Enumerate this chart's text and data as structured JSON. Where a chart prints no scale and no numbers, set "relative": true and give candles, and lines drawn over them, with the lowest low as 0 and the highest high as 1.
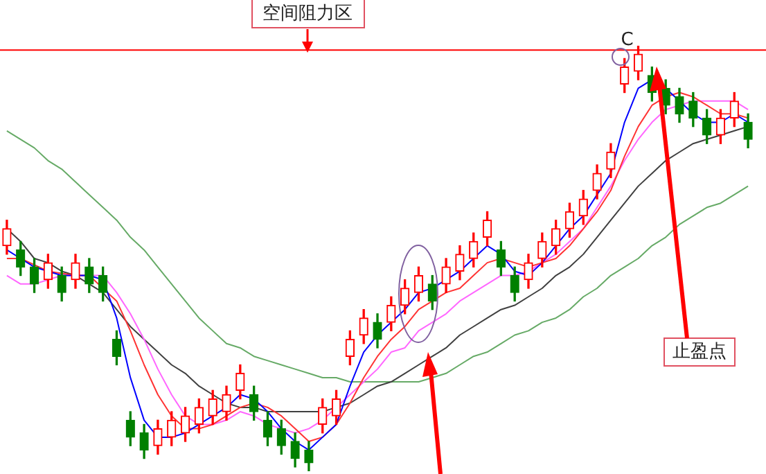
{
  "chart_data": {
    "type": "candlestick",
    "relative": true,
    "legend": false,
    "marker": "none",
    "line_style": "solid",
    "categories": [
      null,
      null,
      null,
      null,
      null,
      null,
      null,
      null,
      null,
      null,
      null,
      null,
      null,
      null,
      null,
      null,
      null,
      null,
      null,
      null,
      null,
      null,
      null,
      null,
      null,
      null,
      null,
      null,
      null,
      null,
      null,
      null,
      null,
      null,
      null,
      null,
      null,
      null,
      null,
      null,
      null,
      null,
      null,
      null,
      null,
      null,
      null,
      null,
      null,
      null,
      null,
      null,
      null,
      null,
      null
    ],
    "ohlc": [
      [
        0.53,
        0.59,
        0.51,
        0.57
      ],
      [
        0.52,
        0.54,
        0.46,
        0.48
      ],
      [
        0.48,
        0.5,
        0.42,
        0.44
      ],
      [
        0.45,
        0.51,
        0.43,
        0.49
      ],
      [
        0.46,
        0.48,
        0.4,
        0.42
      ],
      [
        0.45,
        0.51,
        0.43,
        0.49
      ],
      [
        0.48,
        0.5,
        0.42,
        0.44
      ],
      [
        0.46,
        0.48,
        0.4,
        0.42
      ],
      [
        0.31,
        0.33,
        0.25,
        0.27
      ],
      [
        0.12,
        0.14,
        0.06,
        0.08
      ],
      [
        0.09,
        0.11,
        0.03,
        0.05
      ],
      [
        0.06,
        0.12,
        0.04,
        0.1
      ],
      [
        0.08,
        0.14,
        0.06,
        0.12
      ],
      [
        0.09,
        0.15,
        0.07,
        0.13
      ],
      [
        0.11,
        0.17,
        0.09,
        0.15
      ],
      [
        0.13,
        0.19,
        0.11,
        0.17
      ],
      [
        0.14,
        0.2,
        0.12,
        0.18
      ],
      [
        0.19,
        0.25,
        0.17,
        0.23
      ],
      [
        0.18,
        0.2,
        0.12,
        0.14
      ],
      [
        0.12,
        0.14,
        0.06,
        0.08
      ],
      [
        0.1,
        0.12,
        0.04,
        0.06
      ],
      [
        0.07,
        0.09,
        0.01,
        0.03
      ],
      [
        0.05,
        0.07,
        0.0,
        0.02
      ],
      [
        0.11,
        0.17,
        0.09,
        0.15
      ],
      [
        0.13,
        0.19,
        0.11,
        0.17
      ],
      [
        0.27,
        0.33,
        0.25,
        0.31
      ],
      [
        0.32,
        0.38,
        0.3,
        0.36
      ],
      [
        0.35,
        0.37,
        0.29,
        0.31
      ],
      [
        0.35,
        0.41,
        0.33,
        0.39
      ],
      [
        0.39,
        0.45,
        0.37,
        0.43
      ],
      [
        0.42,
        0.48,
        0.4,
        0.46
      ],
      [
        0.44,
        0.46,
        0.38,
        0.4
      ],
      [
        0.44,
        0.5,
        0.42,
        0.48
      ],
      [
        0.47,
        0.53,
        0.45,
        0.51
      ],
      [
        0.5,
        0.56,
        0.48,
        0.54
      ],
      [
        0.55,
        0.61,
        0.53,
        0.59
      ],
      [
        0.52,
        0.54,
        0.46,
        0.48
      ],
      [
        0.46,
        0.48,
        0.4,
        0.42
      ],
      [
        0.45,
        0.51,
        0.43,
        0.49
      ],
      [
        0.5,
        0.56,
        0.48,
        0.54
      ],
      [
        0.53,
        0.59,
        0.51,
        0.57
      ],
      [
        0.57,
        0.63,
        0.55,
        0.61
      ],
      [
        0.6,
        0.66,
        0.58,
        0.64
      ],
      [
        0.66,
        0.72,
        0.64,
        0.7
      ],
      [
        0.71,
        0.77,
        0.69,
        0.75
      ],
      [
        0.91,
        0.97,
        0.89,
        0.95
      ],
      [
        0.94,
        1.0,
        0.92,
        0.98
      ],
      [
        0.93,
        0.95,
        0.87,
        0.89
      ],
      [
        0.9,
        0.92,
        0.84,
        0.86
      ],
      [
        0.88,
        0.9,
        0.82,
        0.84
      ],
      [
        0.87,
        0.89,
        0.81,
        0.83
      ],
      [
        0.83,
        0.85,
        0.77,
        0.79
      ],
      [
        0.79,
        0.85,
        0.77,
        0.83
      ],
      [
        0.83,
        0.89,
        0.81,
        0.87
      ],
      [
        0.82,
        0.84,
        0.76,
        0.78
      ]
    ],
    "colors": [
      "#ff0000",
      "#008000",
      "#008000",
      "#ff0000",
      "#008000",
      "#ff0000",
      "#008000",
      "#008000",
      "#008000",
      "#008000",
      "#008000",
      "#ff0000",
      "#ff0000",
      "#ff0000",
      "#ff0000",
      "#ff0000",
      "#ff0000",
      "#ff0000",
      "#008000",
      "#008000",
      "#008000",
      "#008000",
      "#008000",
      "#ff0000",
      "#ff0000",
      "#ff0000",
      "#ff0000",
      "#008000",
      "#ff0000",
      "#ff0000",
      "#ff0000",
      "#008000",
      "#ff0000",
      "#ff0000",
      "#ff0000",
      "#ff0000",
      "#008000",
      "#008000",
      "#ff0000",
      "#ff0000",
      "#ff0000",
      "#ff0000",
      "#ff0000",
      "#ff0000",
      "#ff0000",
      "#ff0000",
      "#ff0000",
      "#008000",
      "#008000",
      "#008000",
      "#008000",
      "#008000",
      "#ff0000",
      "#ff0000",
      "#008000"
    ],
    "series": [
      {
        "type": "line",
        "color": "#0000ff",
        "values": [
          0.52,
          0.5,
          0.48,
          0.47,
          0.46,
          0.46,
          0.46,
          0.45,
          0.36,
          0.22,
          0.12,
          0.08,
          0.08,
          0.09,
          0.11,
          0.13,
          0.15,
          0.18,
          0.17,
          0.14,
          0.1,
          0.07,
          0.05,
          0.08,
          0.11,
          0.2,
          0.28,
          0.32,
          0.35,
          0.38,
          0.42,
          0.43,
          0.45,
          0.47,
          0.5,
          0.53,
          0.51,
          0.47,
          0.46,
          0.49,
          0.53,
          0.57,
          0.6,
          0.65,
          0.7,
          0.82,
          0.9,
          0.92,
          0.9,
          0.87,
          0.84,
          0.82,
          0.82,
          0.84,
          0.82
        ]
      },
      {
        "type": "line",
        "color": "#ff3333",
        "values": [
          0.5,
          0.5,
          null,
          0.47,
          null,
          0.46,
          0.46,
          null,
          0.4,
          0.33,
          0.25,
          0.18,
          0.13,
          0.1,
          0.1,
          0.11,
          0.13,
          0.15,
          0.16,
          0.15,
          0.13,
          0.1,
          0.07,
          0.08,
          0.11,
          0.16,
          0.22,
          0.27,
          0.31,
          0.34,
          0.38,
          0.4,
          0.42,
          0.43,
          0.46,
          0.49,
          0.5,
          0.49,
          0.48,
          0.49,
          0.5,
          0.53,
          0.57,
          0.61,
          0.66,
          0.74,
          0.81,
          0.86,
          0.88,
          0.89,
          0.88,
          0.86,
          0.84,
          0.84,
          0.83
        ]
      },
      {
        "type": "line",
        "color": "#ff66ff",
        "values": [
          0.46,
          0.44,
          0.44,
          0.45,
          0.46,
          null,
          0.46,
          0.46,
          0.42,
          0.37,
          0.31,
          0.24,
          0.18,
          0.13,
          0.11,
          0.11,
          0.12,
          0.14,
          0.13,
          0.11,
          0.1,
          0.09,
          0.1,
          0.12,
          0.15,
          0.18,
          0.21,
          0.24,
          0.28,
          0.29,
          0.33,
          0.35,
          0.37,
          0.4,
          0.42,
          0.44,
          0.46,
          0.46,
          0.47,
          0.49,
          0.51,
          0.54,
          0.57,
          0.62,
          0.67,
          0.73,
          0.78,
          0.82,
          0.85,
          0.86,
          0.87,
          0.87,
          0.87,
          0.87,
          0.85
        ]
      },
      {
        "type": "line",
        "color": "#404040",
        "values": [
          0.57,
          0.54,
          0.5,
          0.49,
          0.47,
          0.46,
          0.44,
          0.42,
          0.38,
          0.34,
          0.31,
          0.28,
          0.25,
          0.23,
          0.2,
          0.18,
          0.16,
          0.15,
          0.15,
          0.14,
          0.14,
          0.14,
          0.14,
          0.14,
          0.15,
          0.16,
          0.18,
          0.2,
          0.21,
          0.23,
          0.25,
          0.27,
          0.29,
          0.32,
          0.34,
          0.36,
          0.38,
          0.39,
          0.41,
          0.43,
          0.46,
          0.48,
          0.51,
          0.55,
          0.59,
          0.63,
          0.67,
          0.7,
          0.73,
          0.75,
          0.77,
          0.78,
          0.79,
          0.8,
          0.81
        ]
      },
      {
        "type": "line",
        "color": "#66aa66",
        "values": [
          0.8,
          0.78,
          0.76,
          0.73,
          0.71,
          0.68,
          0.65,
          0.62,
          0.59,
          0.55,
          0.52,
          0.48,
          0.44,
          0.4,
          0.36,
          0.33,
          0.3,
          0.29,
          0.27,
          0.26,
          0.25,
          0.24,
          0.23,
          0.22,
          0.22,
          0.21,
          0.21,
          0.21,
          0.21,
          0.21,
          0.21,
          0.22,
          0.23,
          0.25,
          0.27,
          0.28,
          0.3,
          0.32,
          0.33,
          0.35,
          0.36,
          0.38,
          0.41,
          0.43,
          0.46,
          0.48,
          0.5,
          0.53,
          0.55,
          0.58,
          0.6,
          0.62,
          0.63,
          0.65,
          0.67
        ]
      }
    ],
    "ref_lines": [
      {
        "axis": "y",
        "value": 0.99,
        "label": "空间阻力区",
        "color": "#ff0000"
      }
    ],
    "annotations": [
      "C",
      "止盈点"
    ]
  }
}
